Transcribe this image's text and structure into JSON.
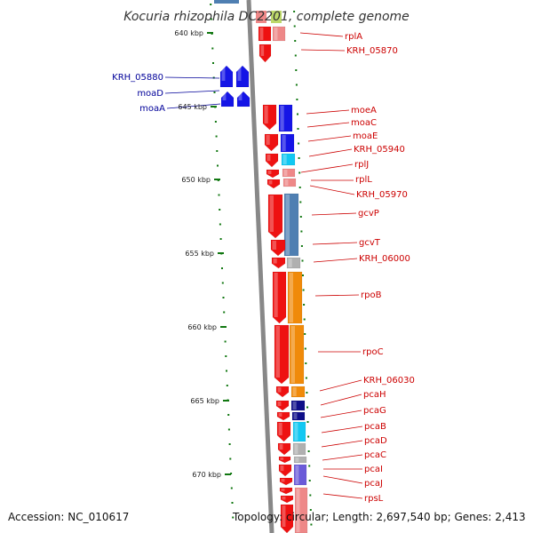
{
  "header": {
    "title": "Kocuria rhizophila DC2201, complete genome"
  },
  "footer": {
    "accession": "Accession: NC_010617",
    "topology": "Topology: circular; Length: 2,697,540 bp; Genes: 2,413"
  },
  "colors": {
    "red_gene": "#ee1111",
    "blue_gene": "#1515e6",
    "steel_gene": "#4f7fb2",
    "orange_gene": "#f08a0a",
    "navy_gene": "#0e0e88",
    "cyan_gene": "#12c8f2",
    "pink_gene": "#ee8888",
    "grey_gene": "#b0b0b0",
    "purple_gene": "#6a5ad8",
    "label_red": "#cc0000",
    "label_blue": "#000099",
    "tick_green": "#117711",
    "backbone": "#888888"
  },
  "scale_ticks": [
    {
      "label": "640 kbp"
    },
    {
      "label": "645 kbp"
    },
    {
      "label": "650 kbp"
    },
    {
      "label": "655 kbp"
    },
    {
      "label": "660 kbp"
    },
    {
      "label": "665 kbp"
    },
    {
      "label": "670 kbp"
    }
  ],
  "left_labels": [
    {
      "label": "KRH_05880"
    },
    {
      "label": "moaD"
    },
    {
      "label": "moaA"
    }
  ],
  "right_labels": [
    {
      "label": "rplA"
    },
    {
      "label": "KRH_05870"
    },
    {
      "label": "moeA"
    },
    {
      "label": "moaC"
    },
    {
      "label": "moaE"
    },
    {
      "label": "KRH_05940"
    },
    {
      "label": "rplJ"
    },
    {
      "label": "rplL"
    },
    {
      "label": "KRH_05970"
    },
    {
      "label": "gcvP"
    },
    {
      "label": "gcvT"
    },
    {
      "label": "KRH_06000"
    },
    {
      "label": "rpoB"
    },
    {
      "label": "rpoC"
    },
    {
      "label": "KRH_06030"
    },
    {
      "label": "pcaH"
    },
    {
      "label": "pcaG"
    },
    {
      "label": "pcaB"
    },
    {
      "label": "pcaD"
    },
    {
      "label": "pcaC"
    },
    {
      "label": "pcaI"
    },
    {
      "label": "pcaJ"
    },
    {
      "label": "rpsL"
    }
  ]
}
